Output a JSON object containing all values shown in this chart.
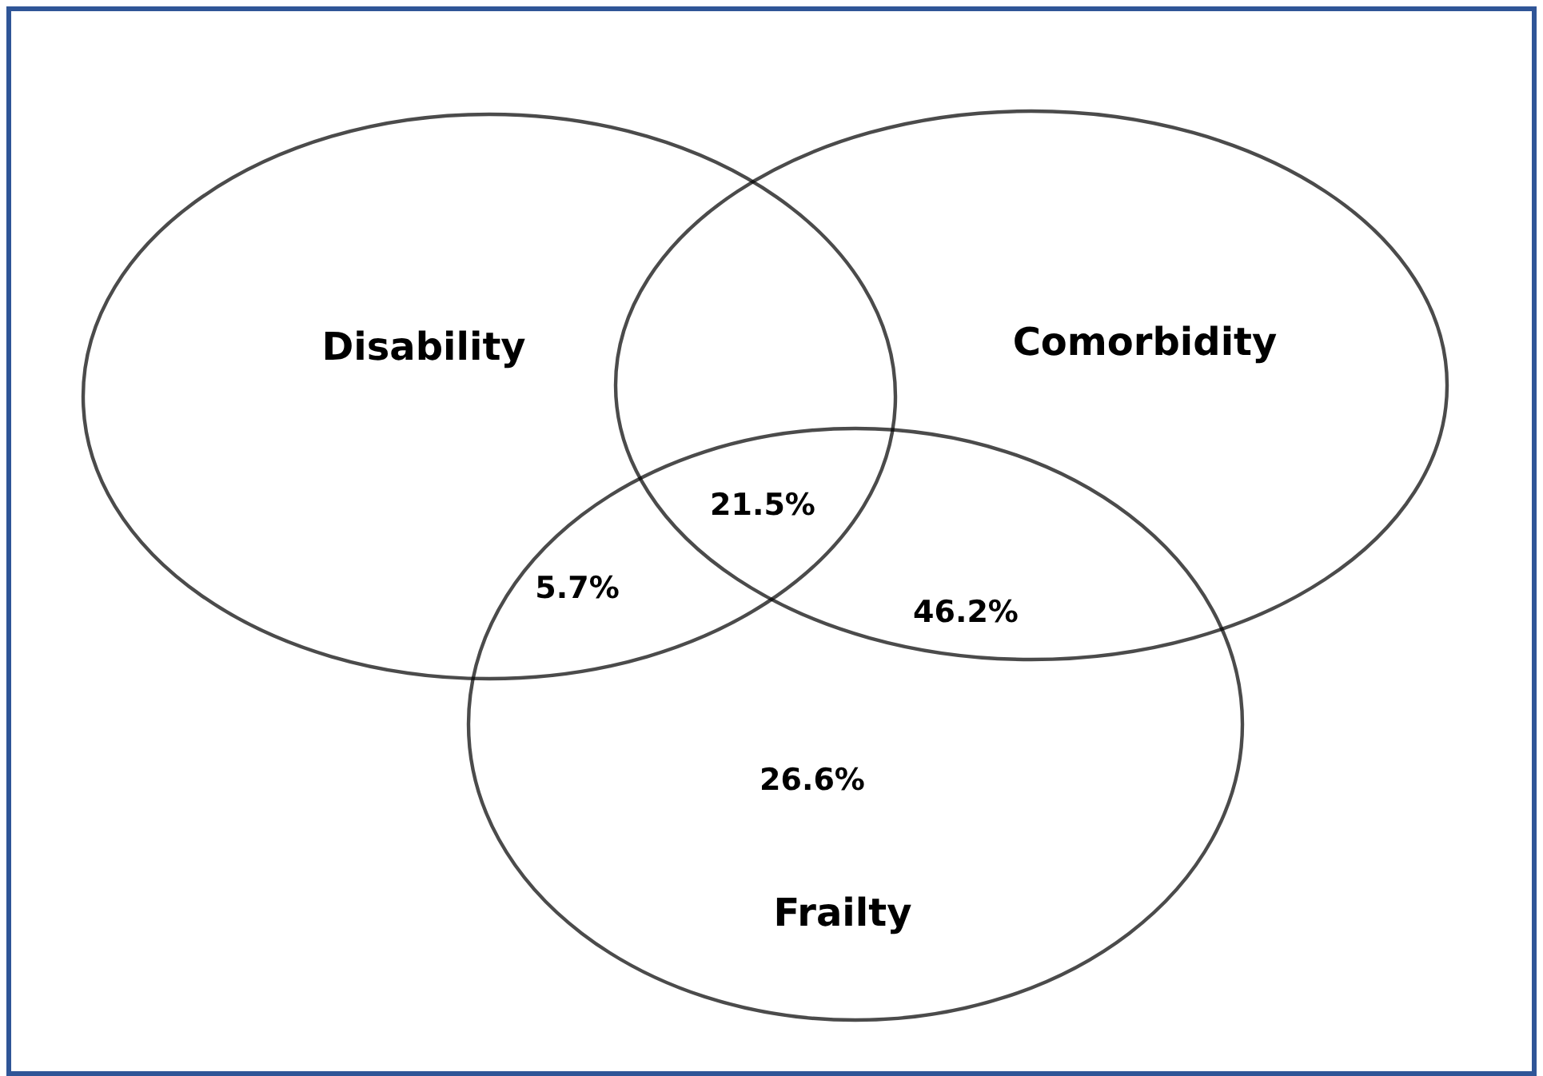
{
  "chart_data": {
    "type": "other",
    "annotations": [
      "Disability",
      "Comorbidity",
      "Frailty"
    ],
    "categories": [
      null,
      null,
      null,
      null
    ],
    "values": [
      21.5,
      5.7,
      46.2,
      26.6
    ],
    "value_labels": [
      "21.5%",
      "5.7%",
      "46.2%",
      "26.6%"
    ]
  }
}
